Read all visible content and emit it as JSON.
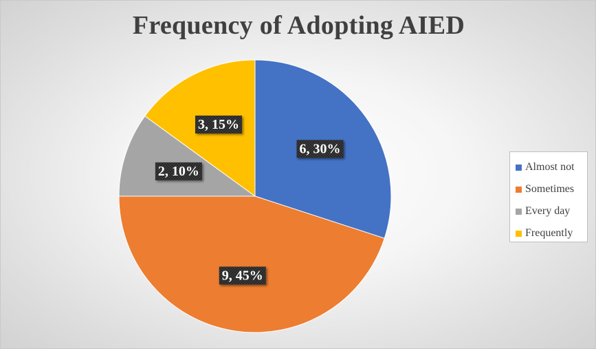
{
  "chart_data": {
    "type": "pie",
    "title": "Frequency of Adopting AIED",
    "categories": [
      "Almost not",
      "Sometimes",
      "Every day",
      "Frequently"
    ],
    "values": [
      6,
      9,
      2,
      3
    ],
    "percentages": [
      30,
      45,
      10,
      15
    ],
    "data_labels": [
      "6, 30%",
      "9, 45%",
      "2, 10%",
      "3, 15%"
    ],
    "colors": [
      "#4472C4",
      "#ED7D31",
      "#A5A5A5",
      "#FFC000"
    ],
    "start_angle_deg": 0,
    "direction": "clockwise",
    "legend_position": "right"
  }
}
